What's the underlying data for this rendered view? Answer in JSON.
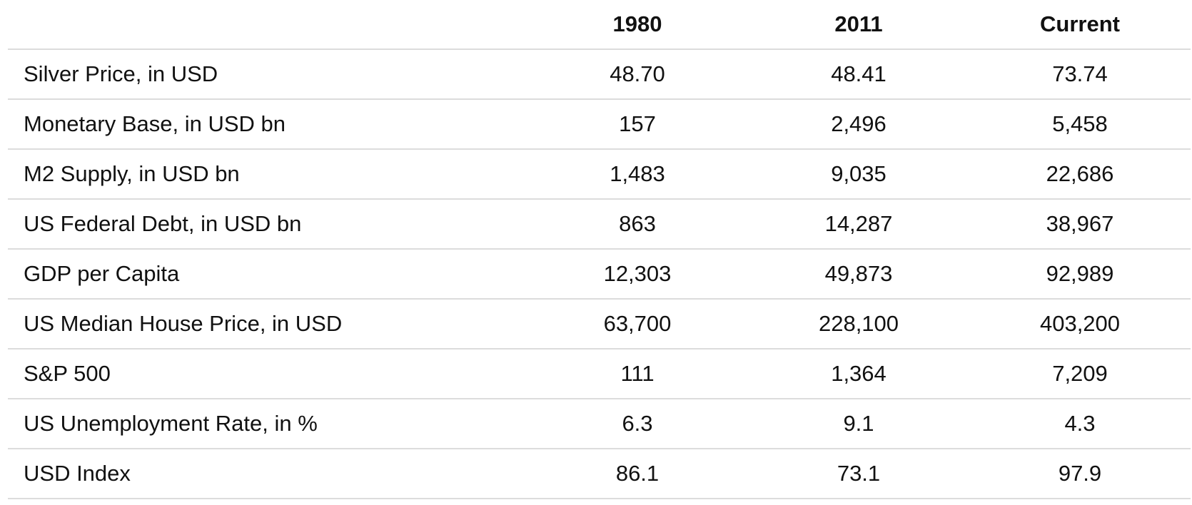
{
  "table": {
    "columns": [
      "1980",
      "2011",
      "Current"
    ],
    "rows": [
      [
        "Silver Price, in USD",
        "48.70",
        "48.41",
        "73.74"
      ],
      [
        "Monetary Base, in USD bn",
        "157",
        "2,496",
        "5,458"
      ],
      [
        "M2 Supply, in USD bn",
        "1,483",
        "9,035",
        "22,686"
      ],
      [
        "US Federal Debt, in USD bn",
        "863",
        "14,287",
        "38,967"
      ],
      [
        "GDP per Capita",
        "12,303",
        "49,873",
        "92,989"
      ],
      [
        "US Median House Price, in USD",
        "63,700",
        "228,100",
        "403,200"
      ],
      [
        "S&P 500",
        "111",
        "1,364",
        "7,209"
      ],
      [
        "US Unemployment Rate, in %",
        "6.3",
        "9.1",
        "4.3"
      ],
      [
        "USD Index",
        "86.1",
        "73.1",
        "97.9"
      ]
    ]
  }
}
